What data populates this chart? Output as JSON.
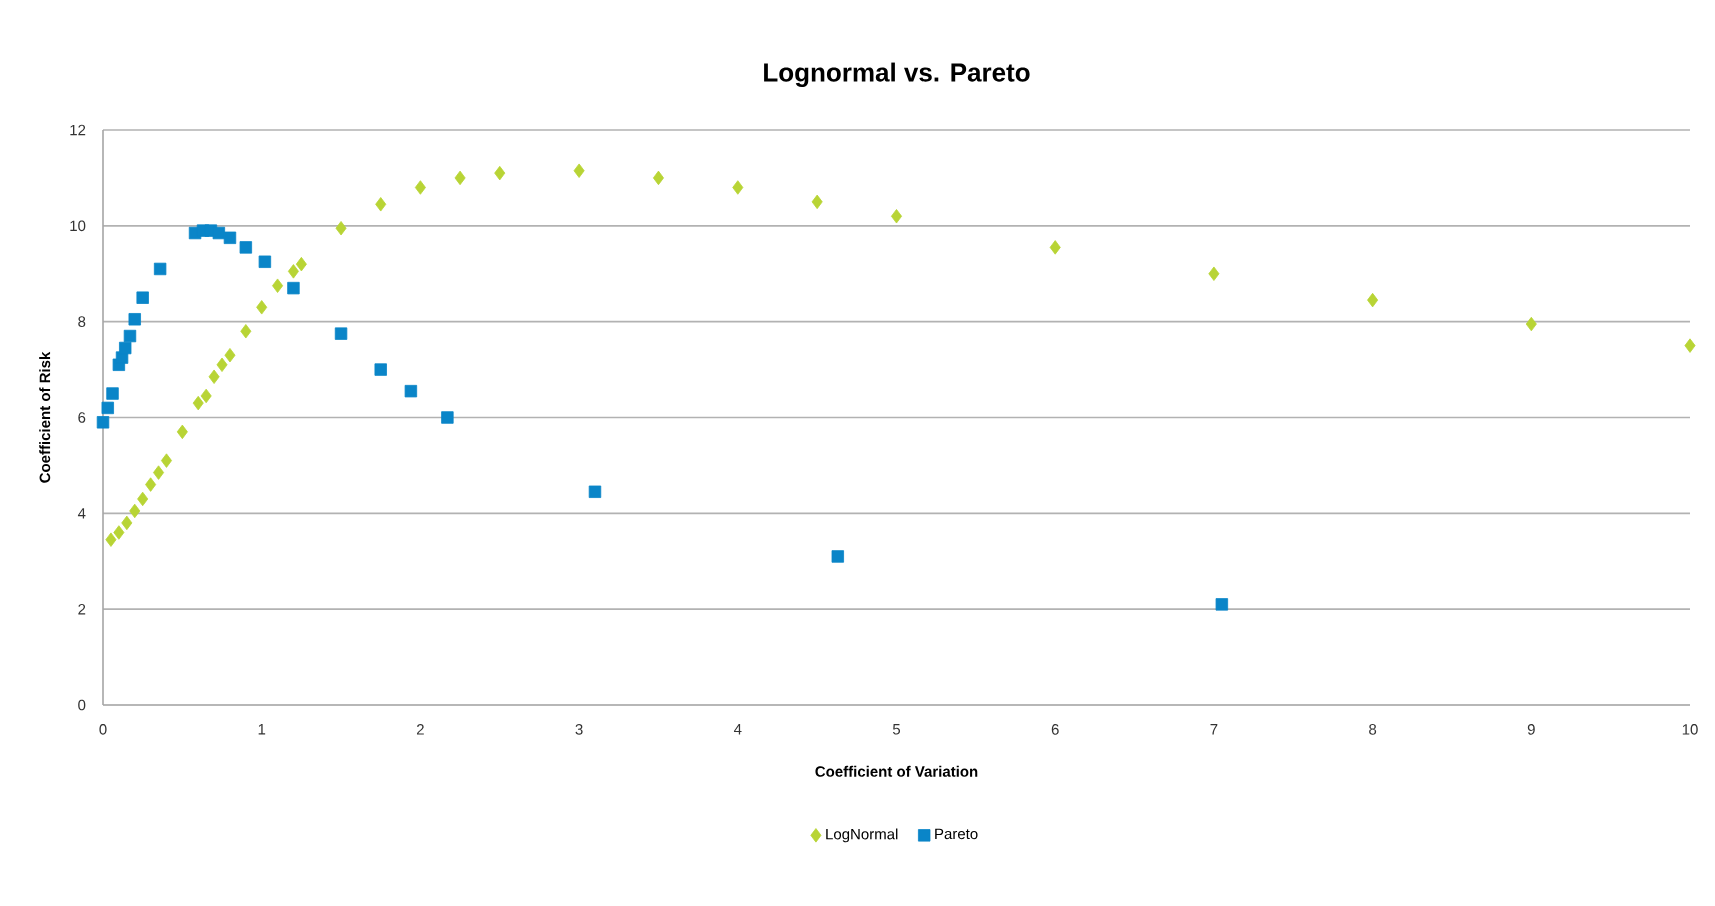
{
  "chart_data": {
    "type": "scatter",
    "title": "Lognormal vs. Pareto",
    "xlabel": "Coefficient of Variation",
    "ylabel": "Coefficient of Risk",
    "xlim": [
      0,
      10
    ],
    "xticks": [
      0,
      1,
      2,
      3,
      4,
      5,
      6,
      7,
      8,
      9,
      10
    ],
    "ylim": [
      0,
      12
    ],
    "yticks": [
      0,
      2,
      4,
      6,
      8,
      10,
      12
    ],
    "grid": "y",
    "legend": "bottom",
    "series": [
      {
        "name": "LogNormal",
        "color": "#b8d435",
        "marker": "diamond",
        "x": [
          0.05,
          0.1,
          0.15,
          0.2,
          0.25,
          0.3,
          0.35,
          0.4,
          0.5,
          0.6,
          0.65,
          0.7,
          0.75,
          0.8,
          0.9,
          1.0,
          1.1,
          1.2,
          1.25,
          1.5,
          1.75,
          2,
          2.25,
          2.5,
          3,
          3.5,
          4,
          4.5,
          5,
          6,
          7,
          8,
          9,
          10
        ],
        "values": [
          3.45,
          3.6,
          3.8,
          4.05,
          4.3,
          4.6,
          4.85,
          5.1,
          5.7,
          6.3,
          6.45,
          6.85,
          7.1,
          7.3,
          7.8,
          8.3,
          8.75,
          9.05,
          9.2,
          9.95,
          10.45,
          10.8,
          11.0,
          11.1,
          11.15,
          11.0,
          10.8,
          10.5,
          10.2,
          9.55,
          9.0,
          8.45,
          7.95,
          7.5
        ]
      },
      {
        "name": "Pareto",
        "color": "#0a85c8",
        "marker": "square",
        "x": [
          0,
          0.03,
          0.06,
          0.1,
          0.12,
          0.14,
          0.17,
          0.2,
          0.25,
          0.36,
          0.58,
          0.63,
          0.68,
          0.73,
          0.8,
          0.9,
          1.02,
          1.2,
          1.5,
          1.75,
          1.94,
          2.17,
          3.1,
          4.63,
          7.05
        ],
        "values": [
          5.9,
          6.2,
          6.5,
          7.1,
          7.25,
          7.45,
          7.7,
          8.05,
          8.5,
          9.1,
          9.85,
          9.9,
          9.9,
          9.85,
          9.75,
          9.55,
          9.25,
          8.7,
          7.75,
          7.0,
          6.55,
          6.0,
          4.45,
          3.1,
          2.1
        ]
      }
    ]
  }
}
